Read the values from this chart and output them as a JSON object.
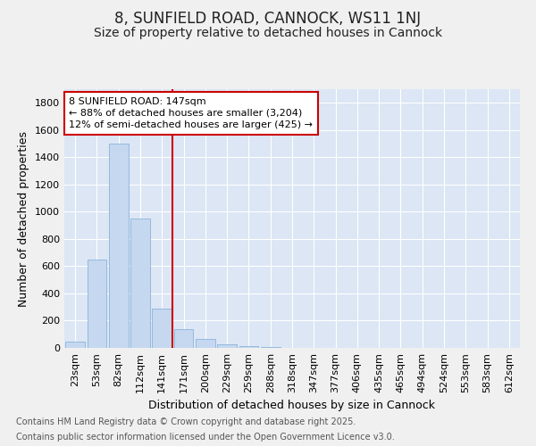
{
  "title1": "8, SUNFIELD ROAD, CANNOCK, WS11 1NJ",
  "title2": "Size of property relative to detached houses in Cannock",
  "xlabel": "Distribution of detached houses by size in Cannock",
  "ylabel": "Number of detached properties",
  "categories": [
    "23sqm",
    "53sqm",
    "82sqm",
    "112sqm",
    "141sqm",
    "171sqm",
    "200sqm",
    "229sqm",
    "259sqm",
    "288sqm",
    "318sqm",
    "347sqm",
    "377sqm",
    "406sqm",
    "435sqm",
    "465sqm",
    "494sqm",
    "524sqm",
    "553sqm",
    "583sqm",
    "612sqm"
  ],
  "values": [
    45,
    650,
    1500,
    950,
    290,
    135,
    65,
    25,
    10,
    5,
    0,
    0,
    0,
    0,
    0,
    0,
    0,
    0,
    0,
    0,
    0
  ],
  "bar_color": "#c5d8f0",
  "bar_edge_color": "#8ab4d8",
  "vline_x_index": 4,
  "vline_color": "#cc0000",
  "annotation_text": "8 SUNFIELD ROAD: 147sqm\n← 88% of detached houses are smaller (3,204)\n12% of semi-detached houses are larger (425) →",
  "annotation_box_color": "#ffffff",
  "annotation_box_edge": "#cc0000",
  "ylim": [
    0,
    1900
  ],
  "yticks": [
    0,
    200,
    400,
    600,
    800,
    1000,
    1200,
    1400,
    1600,
    1800
  ],
  "background_color": "#dce6f5",
  "plot_bg_color": "#dce6f5",
  "fig_bg_color": "#f0f0f0",
  "grid_color": "#ffffff",
  "footer1": "Contains HM Land Registry data © Crown copyright and database right 2025.",
  "footer2": "Contains public sector information licensed under the Open Government Licence v3.0.",
  "title_fontsize": 12,
  "subtitle_fontsize": 10,
  "axis_label_fontsize": 9,
  "tick_fontsize": 8,
  "annotation_fontsize": 8,
  "footer_fontsize": 7
}
